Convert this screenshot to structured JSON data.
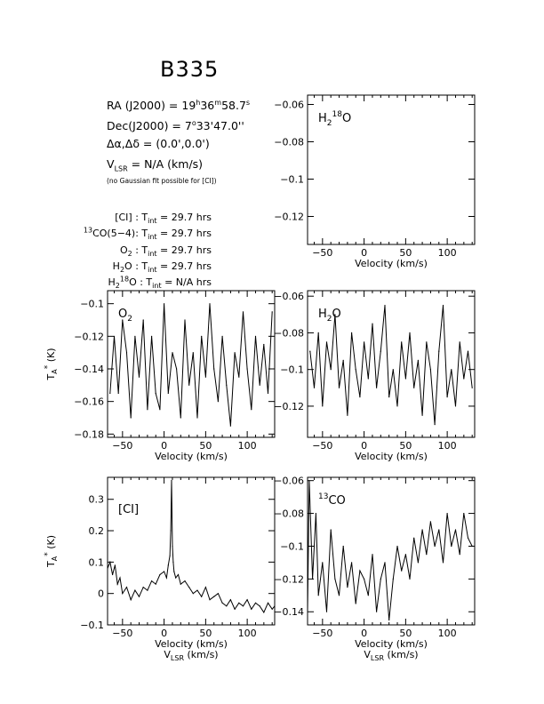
{
  "header": {
    "title": "B335",
    "ra_label": "RA (J2000)  =  19",
    "ra_h": "h",
    "ra_m_val": "36",
    "ra_m": "m",
    "ra_s_val": "58.7",
    "ra_s": "s",
    "dec_label": "Dec(J2000)  =  7",
    "dec_deg": "o",
    "dec_rest": "33'47.0''",
    "offset": "Δα,Δδ  =  (0.0',0.0')",
    "vlsr_v": "V",
    "vlsr_sub": "LSR",
    "vlsr_rest": "  = N/A  (km/s)",
    "note": "(no Gaussian fit possible for [CI])"
  },
  "integrations": [
    {
      "pre": "",
      "label": "[CI] : T",
      "sub": "int",
      "value": " =  29.7 hrs"
    },
    {
      "pre": "13",
      "label": "CO(5−4): T",
      "sub": "int",
      "value": " =  29.7 hrs"
    },
    {
      "pre": "",
      "label": "O",
      "sub2": "2",
      "label2": " : T",
      "sub": "int",
      "value": " =  29.7 hrs"
    },
    {
      "pre": "",
      "label": "H",
      "sub2": "2",
      "label2": "O : T",
      "sub": "int",
      "value": " =  29.7 hrs"
    },
    {
      "pre": "",
      "label": "H",
      "sub2": "2",
      "sup2": "18",
      "label2": "O : T",
      "sub": "int",
      "value": " =  N/A  hrs"
    }
  ],
  "axis_text": {
    "velocity": "Velocity (km/s)",
    "vlsr": "V",
    "vlsr_sub": "LSR",
    "vlsr_unit": " (km/s)",
    "ta": "T",
    "ta_sub": "A",
    "ta_sup": "*",
    "ta_unit": " (K)"
  },
  "chart_data": [
    {
      "id": "h218o",
      "type": "line",
      "label": "H218O",
      "xlim": [
        -68,
        133
      ],
      "ylim": [
        -0.135,
        -0.055
      ],
      "xticks": [
        -50,
        0,
        50,
        100
      ],
      "yticks": [
        -0.12,
        -0.1,
        -0.08,
        -0.06
      ],
      "ytick_labels": [
        "−0.12",
        "−0.1",
        "−0.08",
        "−0.06"
      ],
      "ylabel_side": "left",
      "xlabel": "Velocity (km/s)",
      "series": []
    },
    {
      "id": "o2",
      "type": "line",
      "label": "O2",
      "xlim": [
        -68,
        133
      ],
      "ylim": [
        -0.182,
        -0.092
      ],
      "xticks": [
        -50,
        0,
        50,
        100
      ],
      "yticks": [
        -0.18,
        -0.16,
        -0.14,
        -0.12,
        -0.1
      ],
      "ytick_labels": [
        "−0.18",
        "−0.16",
        "−0.14",
        "−0.12",
        "−0.1"
      ],
      "xlabel": "Velocity (km/s)",
      "ylabel": "TA* (K)",
      "series": [
        {
          "x": [
            -65,
            -60,
            -55,
            -50,
            -45,
            -40,
            -35,
            -30,
            -25,
            -20,
            -15,
            -10,
            -5,
            0,
            5,
            10,
            15,
            20,
            25,
            30,
            35,
            40,
            45,
            50,
            55,
            60,
            65,
            70,
            75,
            80,
            85,
            90,
            95,
            100,
            105,
            110,
            115,
            120,
            125,
            130
          ],
          "y": [
            -0.155,
            -0.12,
            -0.155,
            -0.11,
            -0.13,
            -0.17,
            -0.12,
            -0.145,
            -0.11,
            -0.165,
            -0.12,
            -0.155,
            -0.165,
            -0.1,
            -0.155,
            -0.13,
            -0.14,
            -0.17,
            -0.11,
            -0.15,
            -0.13,
            -0.17,
            -0.12,
            -0.145,
            -0.1,
            -0.14,
            -0.16,
            -0.12,
            -0.15,
            -0.175,
            -0.13,
            -0.145,
            -0.105,
            -0.14,
            -0.165,
            -0.12,
            -0.15,
            -0.125,
            -0.155,
            -0.105
          ]
        }
      ]
    },
    {
      "id": "h2o",
      "type": "line",
      "label": "H2O",
      "xlim": [
        -68,
        133
      ],
      "ylim": [
        -0.137,
        -0.057
      ],
      "xticks": [
        -50,
        0,
        50,
        100
      ],
      "yticks": [
        -0.12,
        -0.1,
        -0.08,
        -0.06
      ],
      "ytick_labels": [
        "−0.12",
        "−0.1",
        "−0.08",
        "−0.06"
      ],
      "xlabel": "Velocity (km/s)",
      "series": [
        {
          "x": [
            -65,
            -60,
            -55,
            -50,
            -45,
            -40,
            -35,
            -30,
            -25,
            -20,
            -15,
            -10,
            -5,
            0,
            5,
            10,
            15,
            20,
            25,
            30,
            35,
            40,
            45,
            50,
            55,
            60,
            65,
            70,
            75,
            80,
            85,
            90,
            95,
            100,
            105,
            110,
            115,
            120,
            125,
            130
          ],
          "y": [
            -0.09,
            -0.11,
            -0.08,
            -0.12,
            -0.085,
            -0.1,
            -0.07,
            -0.11,
            -0.095,
            -0.125,
            -0.08,
            -0.1,
            -0.115,
            -0.085,
            -0.105,
            -0.075,
            -0.11,
            -0.09,
            -0.065,
            -0.115,
            -0.1,
            -0.12,
            -0.085,
            -0.105,
            -0.08,
            -0.11,
            -0.095,
            -0.125,
            -0.085,
            -0.1,
            -0.13,
            -0.09,
            -0.065,
            -0.115,
            -0.1,
            -0.12,
            -0.085,
            -0.105,
            -0.09,
            -0.11
          ]
        }
      ]
    },
    {
      "id": "ci",
      "type": "line",
      "label": "[CI]",
      "xlim": [
        -68,
        133
      ],
      "ylim": [
        -0.1,
        0.37
      ],
      "xticks": [
        -50,
        0,
        50,
        100
      ],
      "yticks": [
        -0.1,
        0,
        0.1,
        0.2,
        0.3
      ],
      "ytick_labels": [
        "−0.1",
        "0",
        "0.1",
        "0.2",
        "0.3"
      ],
      "xlabel": "VLSR (km/s)",
      "ylabel": "TA* (K)",
      "series": [
        {
          "x": [
            -68,
            -65,
            -62,
            -59,
            -56,
            -53,
            -50,
            -45,
            -40,
            -35,
            -30,
            -25,
            -20,
            -15,
            -10,
            -5,
            0,
            3,
            5,
            7,
            8,
            9,
            10,
            11,
            12,
            14,
            17,
            20,
            25,
            30,
            35,
            40,
            45,
            50,
            55,
            60,
            65,
            70,
            75,
            80,
            85,
            90,
            95,
            100,
            105,
            110,
            115,
            120,
            125,
            130,
            133
          ],
          "y": [
            0.08,
            0.1,
            0.06,
            0.09,
            0.03,
            0.05,
            0.0,
            0.02,
            -0.02,
            0.01,
            -0.01,
            0.02,
            0.01,
            0.04,
            0.03,
            0.06,
            0.07,
            0.05,
            0.09,
            0.12,
            0.2,
            0.36,
            0.15,
            0.1,
            0.07,
            0.05,
            0.06,
            0.03,
            0.04,
            0.02,
            0.0,
            0.01,
            -0.01,
            0.02,
            -0.02,
            -0.01,
            0.0,
            -0.03,
            -0.04,
            -0.02,
            -0.05,
            -0.03,
            -0.04,
            -0.02,
            -0.05,
            -0.03,
            -0.04,
            -0.06,
            -0.03,
            -0.05,
            -0.04
          ]
        }
      ]
    },
    {
      "id": "co13",
      "type": "line",
      "label": "13CO",
      "xlim": [
        -68,
        133
      ],
      "ylim": [
        -0.148,
        -0.058
      ],
      "xticks": [
        -50,
        0,
        50,
        100
      ],
      "yticks": [
        -0.14,
        -0.12,
        -0.1,
        -0.08,
        -0.06
      ],
      "ytick_labels": [
        "−0.14",
        "−0.12",
        "−0.1",
        "−0.08",
        "−0.06"
      ],
      "xlabel": "VLSR (km/s)",
      "series": [
        {
          "x": [
            -68,
            -66,
            -62,
            -58,
            -55,
            -50,
            -45,
            -40,
            -35,
            -30,
            -25,
            -20,
            -15,
            -10,
            -5,
            0,
            5,
            10,
            15,
            20,
            25,
            30,
            35,
            40,
            45,
            50,
            55,
            60,
            65,
            70,
            75,
            80,
            85,
            90,
            95,
            100,
            105,
            110,
            115,
            120,
            125,
            130
          ],
          "y": [
            -0.14,
            -0.06,
            -0.12,
            -0.08,
            -0.13,
            -0.11,
            -0.14,
            -0.09,
            -0.12,
            -0.13,
            -0.1,
            -0.125,
            -0.11,
            -0.135,
            -0.115,
            -0.12,
            -0.13,
            -0.105,
            -0.14,
            -0.12,
            -0.11,
            -0.145,
            -0.12,
            -0.1,
            -0.115,
            -0.105,
            -0.12,
            -0.095,
            -0.11,
            -0.09,
            -0.105,
            -0.085,
            -0.1,
            -0.09,
            -0.11,
            -0.08,
            -0.1,
            -0.09,
            -0.105,
            -0.08,
            -0.095,
            -0.1
          ]
        }
      ]
    }
  ]
}
